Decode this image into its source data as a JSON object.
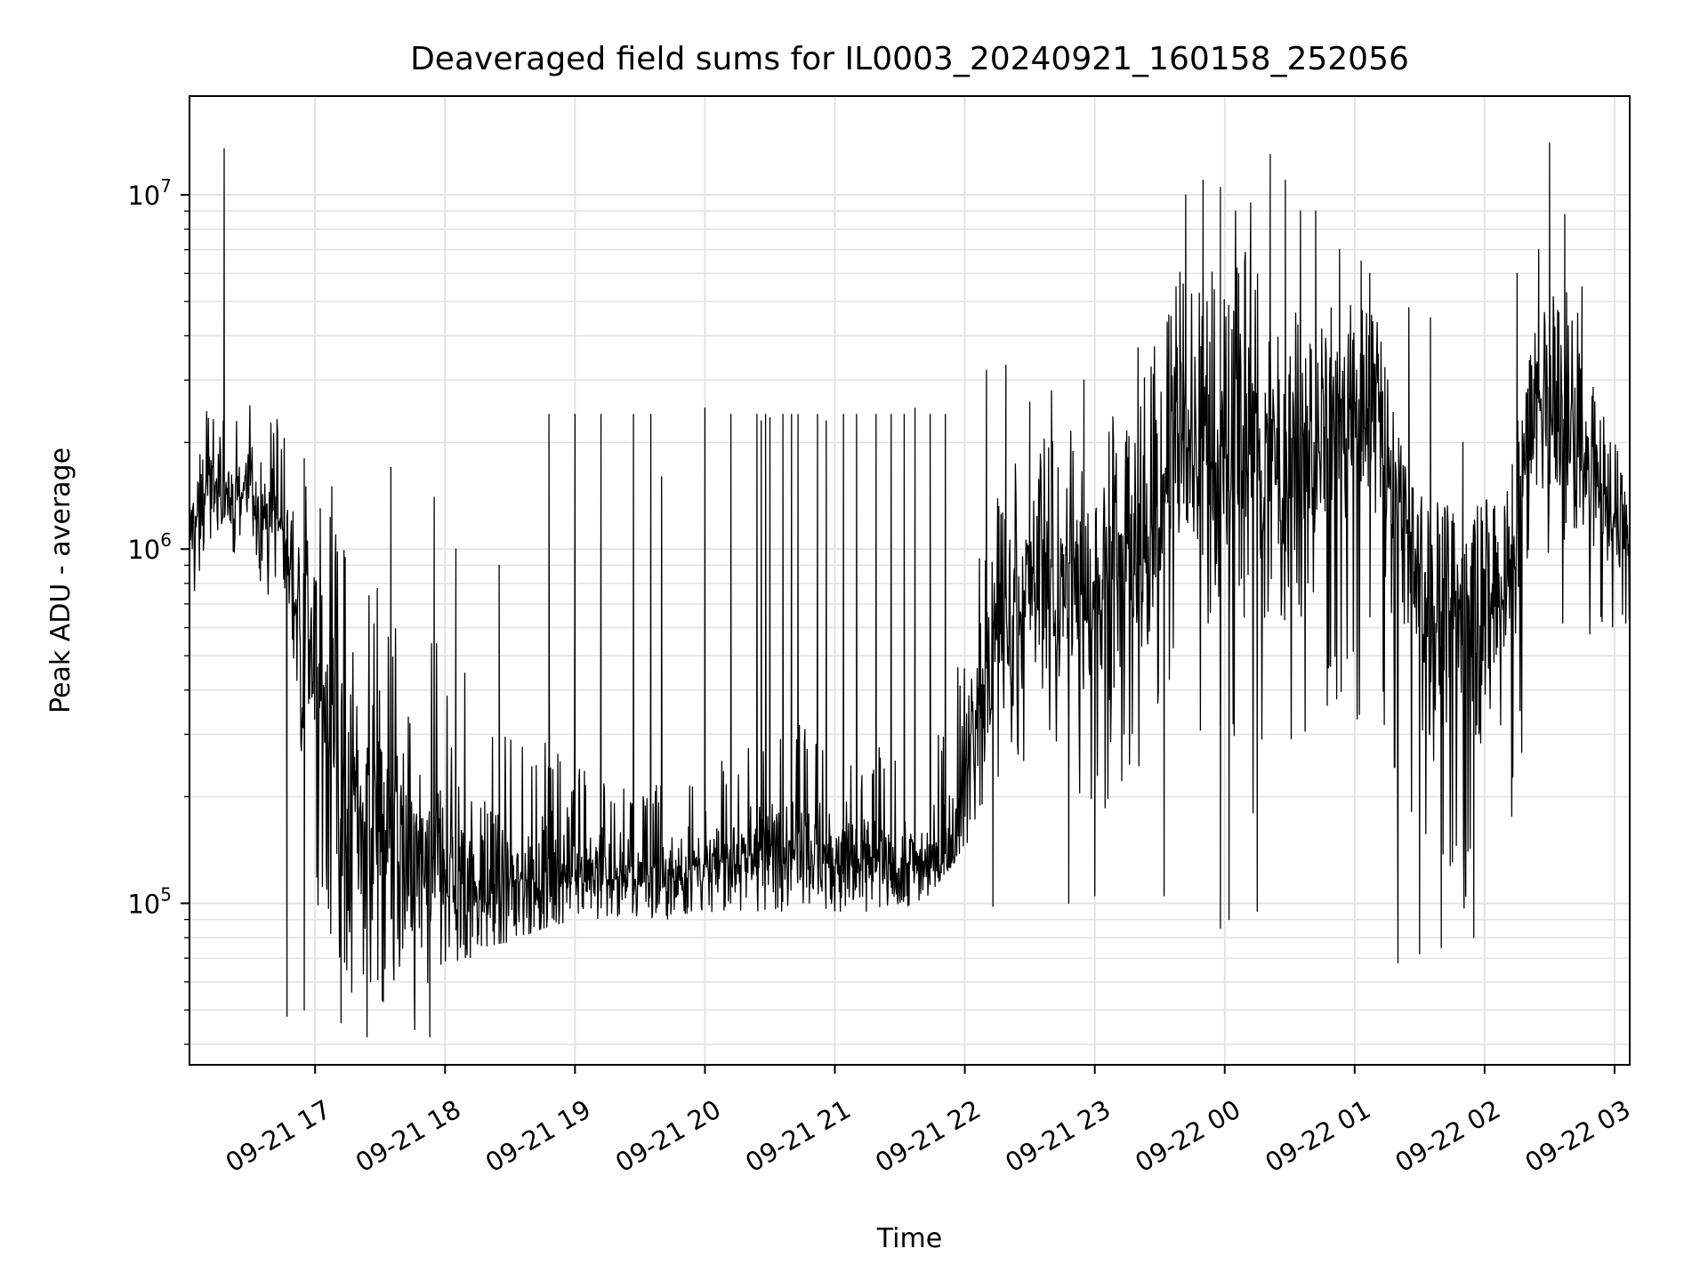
{
  "chart_data": {
    "type": "line",
    "title": "Deaveraged field sums for IL0003_20240921_160158_252056",
    "xlabel": "Time",
    "ylabel": "Peak ADU - average",
    "x_range": [
      "2024-09-21 16:02",
      "2024-09-22 03:07"
    ],
    "x_ticks": [
      "09-21 17",
      "09-21 18",
      "09-21 19",
      "09-21 20",
      "09-21 21",
      "09-21 22",
      "09-21 23",
      "09-22 00",
      "09-22 01",
      "09-22 02",
      "09-22 03"
    ],
    "y_scale": "log",
    "ylim": [
      35000,
      19000000
    ],
    "y_ticks": [
      {
        "base": "10",
        "exp": "5",
        "value": 100000
      },
      {
        "base": "10",
        "exp": "6",
        "value": 1000000
      },
      {
        "base": "10",
        "exp": "7",
        "value": 10000000
      }
    ],
    "grid": true,
    "line_color": "#000000",
    "series": [
      {
        "x": [
          "2024-09-21 16:02",
          "2024-09-21 16:10",
          "2024-09-21 16:20",
          "2024-09-21 16:30",
          "2024-09-21 16:40",
          "2024-09-21 16:50",
          "2024-09-21 17:00",
          "2024-09-21 17:10",
          "2024-09-21 17:20",
          "2024-09-21 17:30",
          "2024-09-21 17:40",
          "2024-09-21 17:50",
          "2024-09-21 18:00",
          "2024-09-21 18:15",
          "2024-09-21 18:30",
          "2024-09-21 18:45",
          "2024-09-21 19:00",
          "2024-09-21 19:20",
          "2024-09-21 19:40",
          "2024-09-21 20:00",
          "2024-09-21 20:20",
          "2024-09-21 20:40",
          "2024-09-21 21:00",
          "2024-09-21 21:20",
          "2024-09-21 21:40",
          "2024-09-21 21:55",
          "2024-09-21 22:10",
          "2024-09-21 22:30",
          "2024-09-21 22:50",
          "2024-09-21 23:10",
          "2024-09-21 23:25",
          "2024-09-21 23:40",
          "2024-09-21 23:55",
          "2024-09-22 00:10",
          "2024-09-22 00:25",
          "2024-09-22 00:40",
          "2024-09-22 00:55",
          "2024-09-22 01:10",
          "2024-09-22 01:25",
          "2024-09-22 01:40",
          "2024-09-22 01:55",
          "2024-09-22 02:10",
          "2024-09-22 02:25",
          "2024-09-22 02:40",
          "2024-09-22 02:55",
          "2024-09-22 03:07"
        ],
        "mid": [
          1100000,
          1500000,
          1400000,
          1500000,
          1300000,
          900000,
          450000,
          250000,
          170000,
          160000,
          130000,
          120000,
          130000,
          110000,
          110000,
          115000,
          125000,
          120000,
          120000,
          125000,
          140000,
          150000,
          135000,
          130000,
          130000,
          150000,
          500000,
          800000,
          750000,
          800000,
          1000000,
          2500000,
          1500000,
          2000000,
          1500000,
          1800000,
          2200000,
          2500000,
          900000,
          600000,
          700000,
          700000,
          2500000,
          2000000,
          1400000,
          1100000
        ],
        "low": [
          650000,
          1000000,
          950000,
          900000,
          700000,
          500000,
          90000,
          60000,
          52000,
          52000,
          50000,
          52000,
          56000,
          75000,
          78000,
          85000,
          90000,
          90000,
          90000,
          92000,
          95000,
          95000,
          95000,
          95000,
          100000,
          130000,
          160000,
          250000,
          180000,
          180000,
          250000,
          450000,
          220000,
          150000,
          250000,
          300000,
          280000,
          400000,
          100000,
          90000,
          90000,
          95000,
          800000,
          500000,
          600000,
          600000
        ],
        "high": [
          1900000,
          2500000,
          2300000,
          2600000,
          2500000,
          2200000,
          1800000,
          1600000,
          1200000,
          900000,
          800000,
          700000,
          500000,
          450000,
          350000,
          300000,
          250000,
          220000,
          220000,
          230000,
          300000,
          350000,
          300000,
          280000,
          250000,
          400000,
          1500000,
          2000000,
          2200000,
          2400000,
          3500000,
          8000000,
          6000000,
          7000000,
          5000000,
          4500000,
          5000000,
          4500000,
          1500000,
          1400000,
          1300000,
          1500000,
          5000000,
          5500000,
          2500000,
          1800000
        ],
        "spikes": [
          [
            "2024-09-21 16:18",
            13500000
          ],
          [
            "2024-09-21 16:55",
            1800000
          ],
          [
            "2024-09-21 17:35",
            1700000
          ],
          [
            "2024-09-21 17:55",
            1400000
          ],
          [
            "2024-09-21 18:05",
            1000000
          ],
          [
            "2024-09-21 18:25",
            900000
          ],
          [
            "2024-09-21 18:48",
            2400000
          ],
          [
            "2024-09-21 19:00",
            2400000
          ],
          [
            "2024-09-21 19:12",
            2400000
          ],
          [
            "2024-09-21 19:27",
            2400000
          ],
          [
            "2024-09-21 19:35",
            2400000
          ],
          [
            "2024-09-21 19:40",
            1600000
          ],
          [
            "2024-09-21 20:00",
            2500000
          ],
          [
            "2024-09-21 20:12",
            2400000
          ],
          [
            "2024-09-21 20:24",
            2400000
          ],
          [
            "2024-09-21 20:26",
            2300000
          ],
          [
            "2024-09-21 20:28",
            2400000
          ],
          [
            "2024-09-21 20:30",
            2350000
          ],
          [
            "2024-09-21 20:36",
            2400000
          ],
          [
            "2024-09-21 20:40",
            2400000
          ],
          [
            "2024-09-21 20:43",
            2400000
          ],
          [
            "2024-09-21 20:52",
            2400000
          ],
          [
            "2024-09-21 20:56",
            2300000
          ],
          [
            "2024-09-21 21:04",
            2400000
          ],
          [
            "2024-09-21 21:10",
            2400000
          ],
          [
            "2024-09-21 21:19",
            2400000
          ],
          [
            "2024-09-21 21:26",
            2400000
          ],
          [
            "2024-09-21 21:32",
            2400000
          ],
          [
            "2024-09-21 21:37",
            2500000
          ],
          [
            "2024-09-21 21:44",
            2400000
          ],
          [
            "2024-09-21 21:51",
            2400000
          ],
          [
            "2024-09-21 22:10",
            3200000
          ],
          [
            "2024-09-21 22:19",
            3300000
          ],
          [
            "2024-09-21 22:30",
            2600000
          ],
          [
            "2024-09-21 22:40",
            2800000
          ],
          [
            "2024-09-21 22:55",
            3000000
          ],
          [
            "2024-09-21 23:20",
            3700000
          ],
          [
            "2024-09-21 23:35",
            2000000
          ],
          [
            "2024-09-21 23:42",
            10000000
          ],
          [
            "2024-09-21 23:50",
            11000000
          ],
          [
            "2024-09-21 23:58",
            10500000
          ],
          [
            "2024-09-22 00:05",
            9000000
          ],
          [
            "2024-09-22 00:12",
            9500000
          ],
          [
            "2024-09-22 00:21",
            13000000
          ],
          [
            "2024-09-22 00:28",
            11000000
          ],
          [
            "2024-09-22 00:35",
            9000000
          ],
          [
            "2024-09-22 00:42",
            9000000
          ],
          [
            "2024-09-22 00:53",
            7000000
          ],
          [
            "2024-09-22 01:03",
            6500000
          ],
          [
            "2024-09-22 01:07",
            6000000
          ],
          [
            "2024-09-22 01:25",
            4800000
          ],
          [
            "2024-09-22 01:35",
            4500000
          ],
          [
            "2024-09-22 01:50",
            2000000
          ],
          [
            "2024-09-22 02:15",
            6000000
          ],
          [
            "2024-09-22 02:25",
            7000000
          ],
          [
            "2024-09-22 02:30",
            14000000
          ],
          [
            "2024-09-22 02:37",
            8800000
          ],
          [
            "2024-09-22 02:45",
            5500000
          ]
        ],
        "dips": [
          [
            "2024-09-21 16:47",
            48000
          ],
          [
            "2024-09-21 16:55",
            50000
          ],
          [
            "2024-09-21 17:12",
            46000
          ],
          [
            "2024-09-21 17:24",
            42000
          ],
          [
            "2024-09-21 17:46",
            44000
          ],
          [
            "2024-09-21 17:53",
            42000
          ],
          [
            "2024-09-21 22:13",
            98000
          ],
          [
            "2024-09-21 22:48",
            100000
          ],
          [
            "2024-09-21 23:00",
            105000
          ],
          [
            "2024-09-21 23:32",
            105000
          ],
          [
            "2024-09-21 23:58",
            85000
          ],
          [
            "2024-09-22 00:02",
            90000
          ],
          [
            "2024-09-22 00:15",
            95000
          ],
          [
            "2024-09-22 01:20",
            68000
          ],
          [
            "2024-09-22 01:30",
            72000
          ],
          [
            "2024-09-22 01:40",
            75000
          ],
          [
            "2024-09-22 01:55",
            80000
          ]
        ]
      }
    ]
  }
}
